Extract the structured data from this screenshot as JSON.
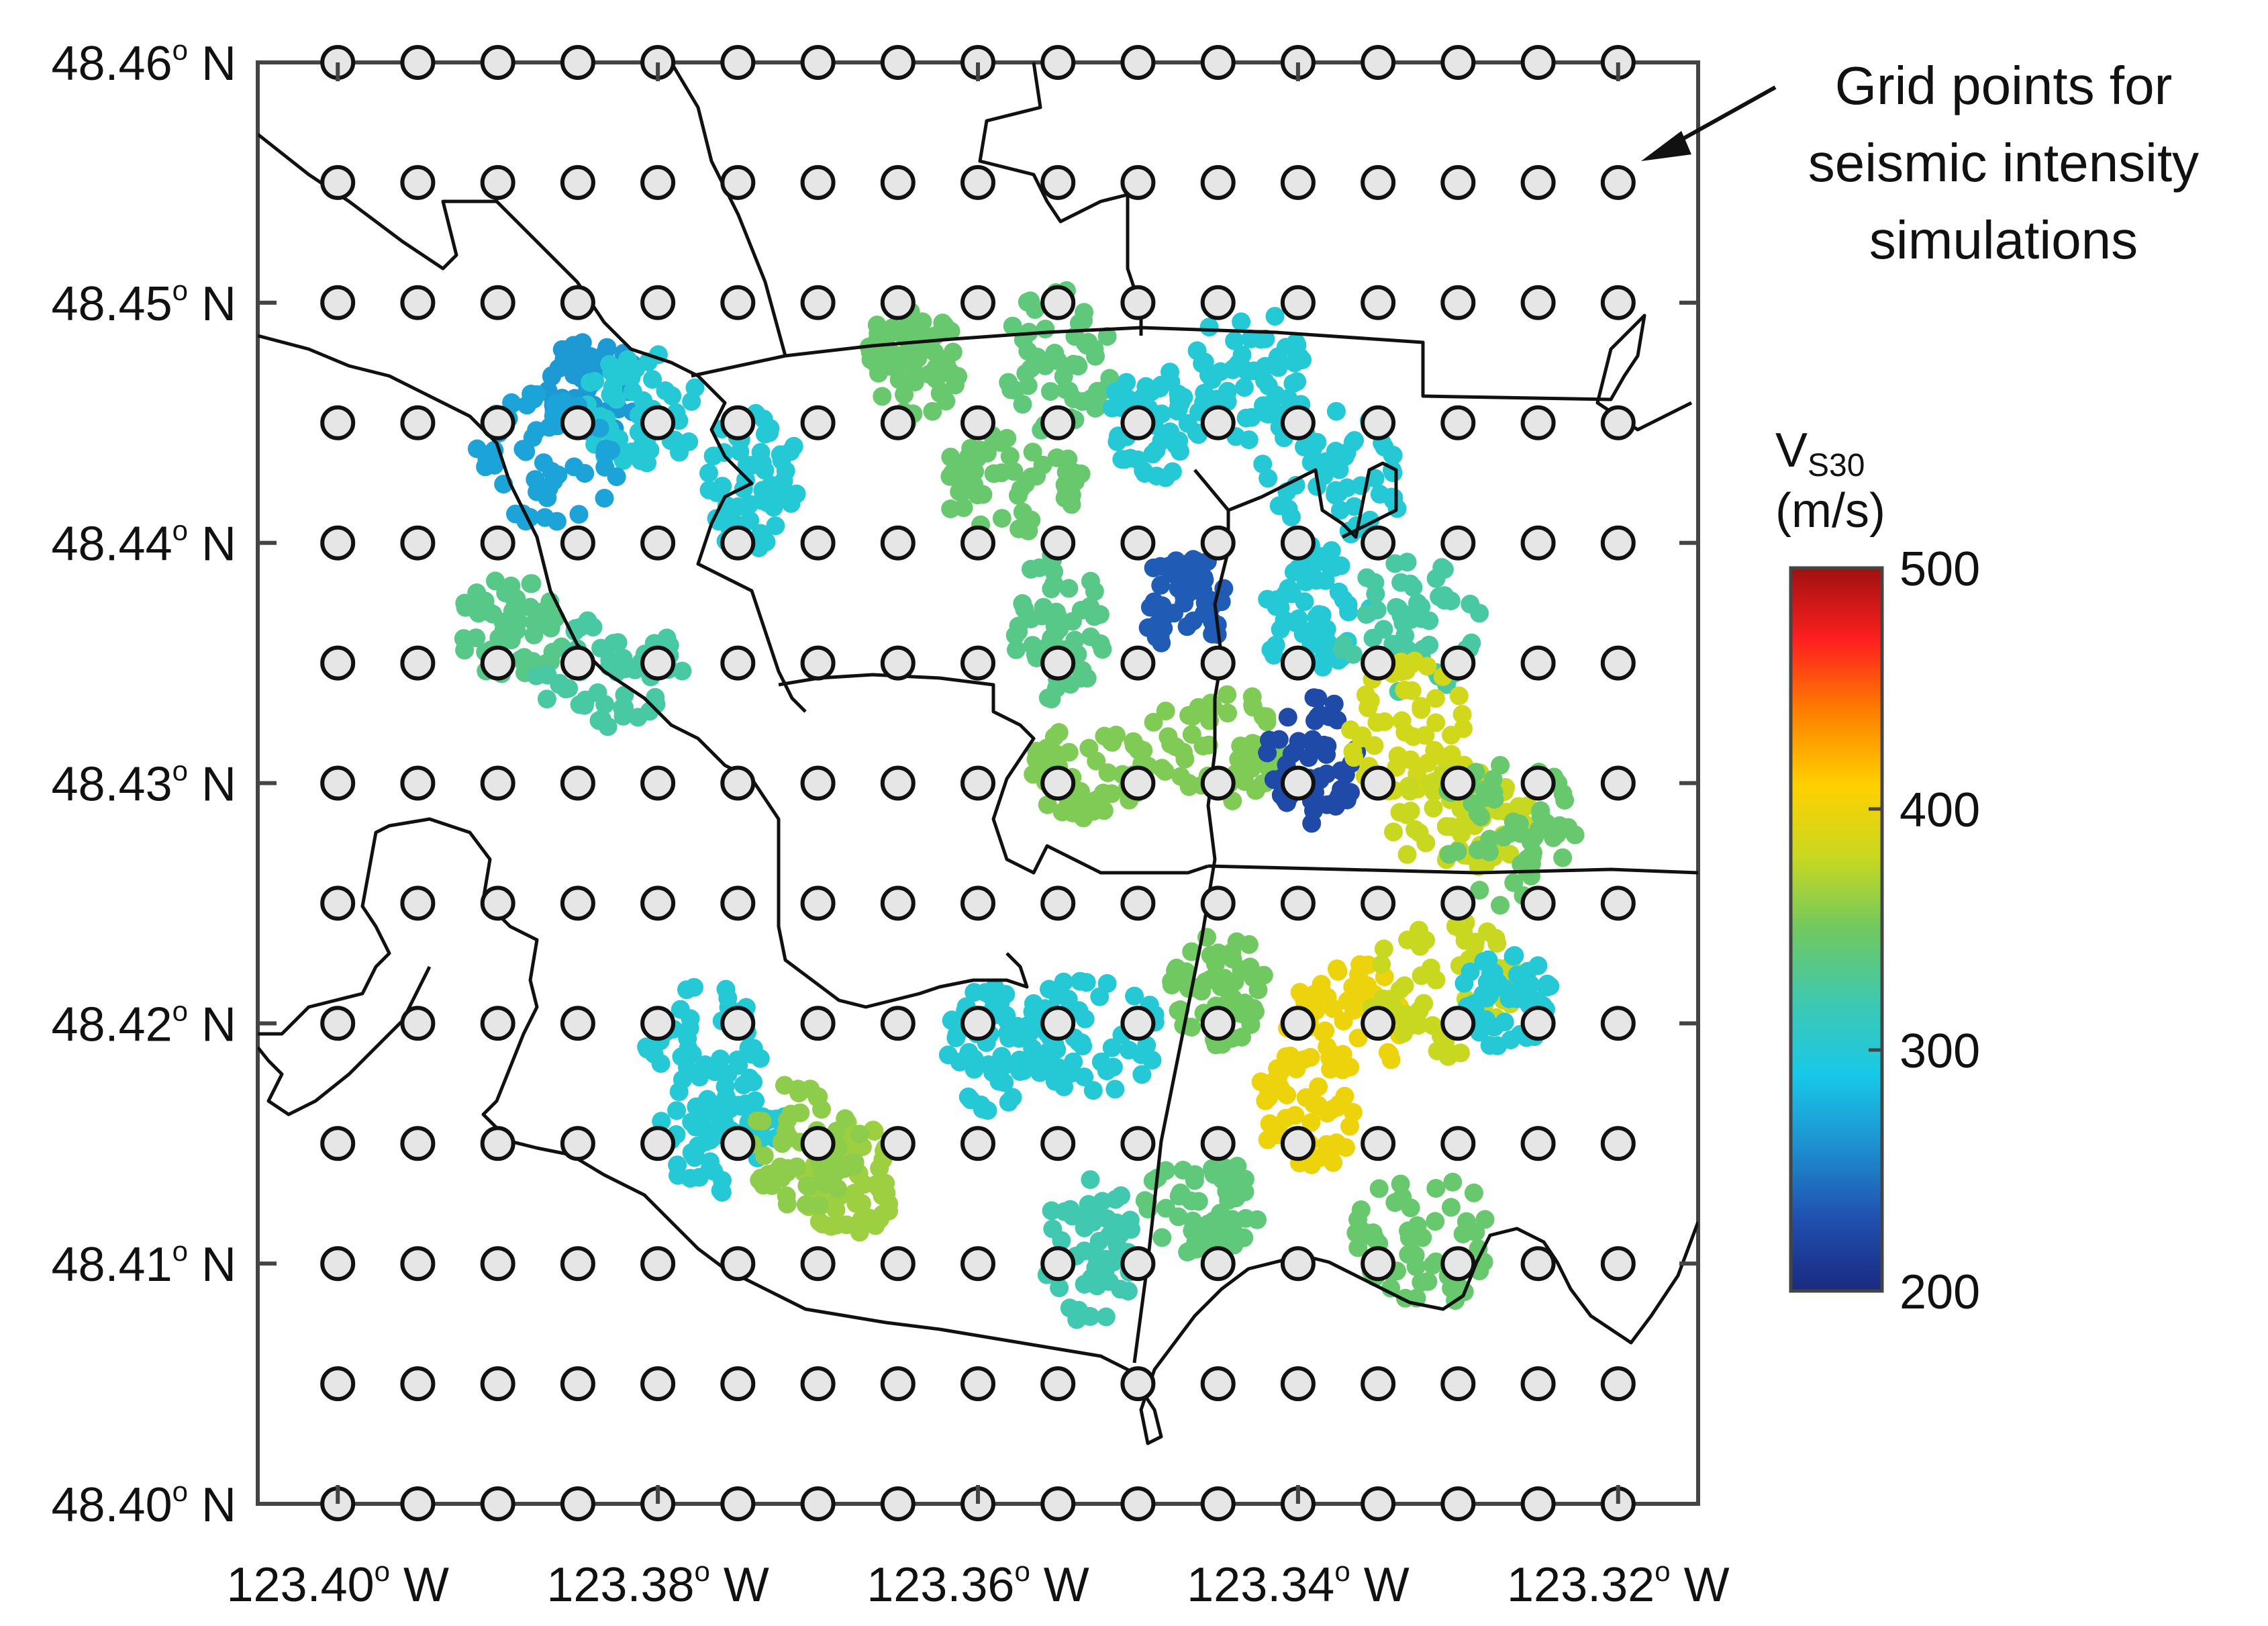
{
  "chart_data": {
    "type": "map-scatter",
    "lat_ticks": [
      {
        "value": 48.46,
        "label": "48.46",
        "suffix": "N"
      },
      {
        "value": 48.45,
        "label": "48.45",
        "suffix": "N"
      },
      {
        "value": 48.44,
        "label": "48.44",
        "suffix": "N"
      },
      {
        "value": 48.43,
        "label": "48.43",
        "suffix": "N"
      },
      {
        "value": 48.42,
        "label": "48.42",
        "suffix": "N"
      },
      {
        "value": 48.41,
        "label": "48.41",
        "suffix": "N"
      },
      {
        "value": 48.4,
        "label": "48.40",
        "suffix": "N"
      }
    ],
    "lon_ticks": [
      {
        "value": -123.4,
        "label": "123.40",
        "suffix": "W"
      },
      {
        "value": -123.38,
        "label": "123.38",
        "suffix": "W"
      },
      {
        "value": -123.36,
        "label": "123.36",
        "suffix": "W"
      },
      {
        "value": -123.34,
        "label": "123.34",
        "suffix": "W"
      },
      {
        "value": -123.32,
        "label": "123.32",
        "suffix": "W"
      }
    ],
    "degree_symbol": "o",
    "lon_range": [
      -123.405,
      -123.315
    ],
    "lat_range": [
      48.4,
      48.46
    ],
    "grid_points": {
      "lon_start": -123.4,
      "lon_end": -123.32,
      "lon_step": 0.005,
      "lat_start": 48.4,
      "lat_end": 48.46,
      "lat_step": 0.005
    },
    "annotation": {
      "lines": [
        "Grid points for",
        "seismic intensity",
        "simulations"
      ],
      "points_to": {
        "lon": -123.32,
        "lat": 48.455
      }
    },
    "colorbar": {
      "title_main": "V",
      "title_sub": "S30",
      "unit": "(m/s)",
      "min": 200,
      "max": 500,
      "ticks": [
        500,
        400,
        300,
        200
      ],
      "colormap": [
        "#1a2a80",
        "#2050b0",
        "#1e90d0",
        "#18c8e8",
        "#40c8b0",
        "#70c860",
        "#c8d820",
        "#ffd000",
        "#ff8000",
        "#ff2020",
        "#a01010"
      ]
    },
    "vs30_clusters": [
      {
        "lon": -123.384,
        "lat": 48.4465,
        "vs30": 265
      },
      {
        "lon": -123.381,
        "lat": 48.4455,
        "vs30": 300
      },
      {
        "lon": -123.387,
        "lat": 48.4435,
        "vs30": 270
      },
      {
        "lon": -123.374,
        "lat": 48.4425,
        "vs30": 300
      },
      {
        "lon": -123.389,
        "lat": 48.4365,
        "vs30": 335
      },
      {
        "lon": -123.383,
        "lat": 48.4345,
        "vs30": 325
      },
      {
        "lon": -123.364,
        "lat": 48.4475,
        "vs30": 345
      },
      {
        "lon": -123.355,
        "lat": 48.4475,
        "vs30": 340
      },
      {
        "lon": -123.358,
        "lat": 48.4425,
        "vs30": 345
      },
      {
        "lon": -123.349,
        "lat": 48.445,
        "vs30": 300
      },
      {
        "lon": -123.343,
        "lat": 48.447,
        "vs30": 300
      },
      {
        "lon": -123.338,
        "lat": 48.4425,
        "vs30": 300
      },
      {
        "lon": -123.347,
        "lat": 48.4375,
        "vs30": 235
      },
      {
        "lon": -123.339,
        "lat": 48.437,
        "vs30": 300
      },
      {
        "lon": -123.333,
        "lat": 48.4365,
        "vs30": 325
      },
      {
        "lon": -123.355,
        "lat": 48.4365,
        "vs30": 335
      },
      {
        "lon": -123.353,
        "lat": 48.4305,
        "vs30": 355
      },
      {
        "lon": -123.345,
        "lat": 48.4315,
        "vs30": 355
      },
      {
        "lon": -123.339,
        "lat": 48.431,
        "vs30": 225
      },
      {
        "lon": -123.333,
        "lat": 48.432,
        "vs30": 385
      },
      {
        "lon": -123.33,
        "lat": 48.4285,
        "vs30": 380
      },
      {
        "lon": -123.345,
        "lat": 48.4215,
        "vs30": 350
      },
      {
        "lon": -123.337,
        "lat": 48.42,
        "vs30": 400
      },
      {
        "lon": -123.331,
        "lat": 48.4215,
        "vs30": 380
      },
      {
        "lon": -123.327,
        "lat": 48.421,
        "vs30": 300
      },
      {
        "lon": -123.339,
        "lat": 48.4165,
        "vs30": 400
      },
      {
        "lon": -123.332,
        "lat": 48.411,
        "vs30": 345
      },
      {
        "lon": -123.353,
        "lat": 48.4105,
        "vs30": 320
      },
      {
        "lon": -123.346,
        "lat": 48.4125,
        "vs30": 340
      },
      {
        "lon": -123.353,
        "lat": 48.4195,
        "vs30": 300
      },
      {
        "lon": -123.359,
        "lat": 48.419,
        "vs30": 300
      },
      {
        "lon": -123.377,
        "lat": 48.4185,
        "vs30": 300
      },
      {
        "lon": -123.376,
        "lat": 48.415,
        "vs30": 300
      },
      {
        "lon": -123.368,
        "lat": 48.4135,
        "vs30": 365
      },
      {
        "lon": -123.371,
        "lat": 48.415,
        "vs30": 360
      },
      {
        "lon": -123.327,
        "lat": 48.428,
        "vs30": 345
      }
    ]
  }
}
